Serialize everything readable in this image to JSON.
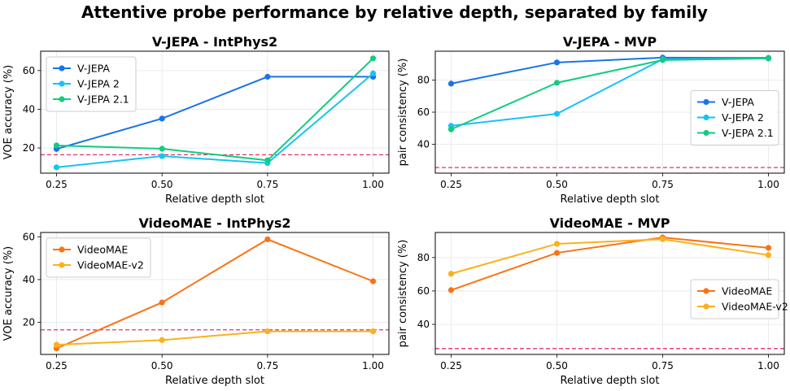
{
  "title": "Attentive probe performance by relative depth, separated by family",
  "colors": {
    "V-JEPA": "#1a73e8",
    "V-JEPA 2": "#17c3f2",
    "V-JEPA 2.1": "#12cc80",
    "VideoMAE": "#f97316",
    "VideoMAE-v2": "#fbb11a",
    "chance": "#e0336b"
  },
  "chart_data": [
    {
      "type": "line",
      "title": "V-JEPA - IntPhys2",
      "xlabel": "Relative depth slot",
      "ylabel": "VOE accuracy (%)",
      "x": [
        0.25,
        0.5,
        0.75,
        1.0
      ],
      "xticks": [
        "0.25",
        "0.50",
        "0.75",
        "1.00"
      ],
      "yticks": [
        20,
        40,
        60
      ],
      "xlim": [
        0.2125,
        1.0375
      ],
      "ylim": [
        7,
        70
      ],
      "reference_line": 16.5,
      "legend": "upper left",
      "grid": true,
      "series": [
        {
          "name": "V-JEPA",
          "values": [
            19.5,
            35.2,
            56.8,
            56.8
          ]
        },
        {
          "name": "V-JEPA 2",
          "values": [
            10.0,
            15.8,
            12.2,
            58.5
          ]
        },
        {
          "name": "V-JEPA 2.1",
          "values": [
            21.3,
            19.6,
            13.6,
            66.3
          ]
        }
      ]
    },
    {
      "type": "line",
      "title": "V-JEPA - MVP",
      "xlabel": "Relative depth slot",
      "ylabel": "pair consistency (%)",
      "x": [
        0.25,
        0.5,
        0.75,
        1.0
      ],
      "xticks": [
        "0.25",
        "0.50",
        "0.75",
        "1.00"
      ],
      "yticks": [
        40,
        60,
        80
      ],
      "xlim": [
        0.2125,
        1.0375
      ],
      "ylim": [
        22,
        98
      ],
      "reference_line": 25.5,
      "legend": "center right",
      "grid": true,
      "series": [
        {
          "name": "V-JEPA",
          "values": [
            77.8,
            91.0,
            94.0,
            93.8
          ]
        },
        {
          "name": "V-JEPA 2",
          "values": [
            51.5,
            59.0,
            93.0,
            93.5
          ]
        },
        {
          "name": "V-JEPA 2.1",
          "values": [
            49.3,
            78.3,
            92.5,
            93.5
          ]
        }
      ]
    },
    {
      "type": "line",
      "title": "VideoMAE - IntPhys2",
      "xlabel": "Relative depth slot",
      "ylabel": "VOE accuracy (%)",
      "x": [
        0.25,
        0.5,
        0.75,
        1.0
      ],
      "xticks": [
        "0.25",
        "0.50",
        "0.75",
        "1.00"
      ],
      "yticks": [
        20,
        40,
        60
      ],
      "xlim": [
        0.2125,
        1.0375
      ],
      "ylim": [
        5,
        62
      ],
      "reference_line": 16.5,
      "legend": "upper left",
      "grid": true,
      "series": [
        {
          "name": "VideoMAE",
          "values": [
            7.8,
            29.3,
            58.8,
            39.2
          ]
        },
        {
          "name": "VideoMAE-v2",
          "values": [
            9.5,
            11.7,
            15.8,
            15.8
          ]
        }
      ]
    },
    {
      "type": "line",
      "title": "VideoMAE - MVP",
      "xlabel": "Relative depth slot",
      "ylabel": "pair consistency (%)",
      "x": [
        0.25,
        0.5,
        0.75,
        1.0
      ],
      "xticks": [
        "0.25",
        "0.50",
        "0.75",
        "1.00"
      ],
      "yticks": [
        40,
        60,
        80
      ],
      "xlim": [
        0.2125,
        1.0375
      ],
      "ylim": [
        22,
        95
      ],
      "reference_line": 25.5,
      "legend": "center right",
      "grid": true,
      "series": [
        {
          "name": "VideoMAE",
          "values": [
            60.5,
            82.8,
            92.0,
            85.8
          ]
        },
        {
          "name": "VideoMAE-v2",
          "values": [
            70.3,
            88.2,
            91.0,
            81.5
          ]
        }
      ]
    }
  ]
}
